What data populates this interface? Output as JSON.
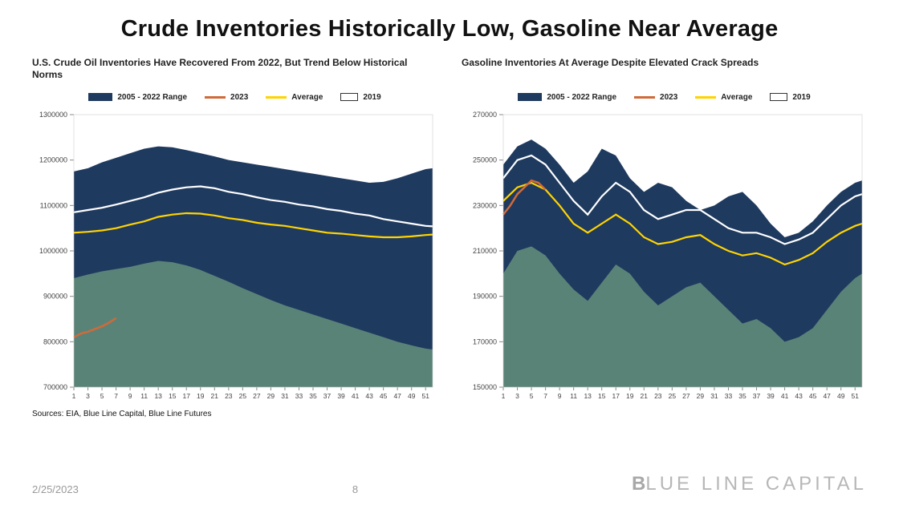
{
  "title": "Crude Inventories Historically Low, Gasoline Near Average",
  "source_note": "Sources: EIA, Blue Line Capital, Blue Line Futures",
  "footer": {
    "date": "2/25/2023",
    "page": "8"
  },
  "logo": {
    "text_pre": "B",
    "text_rest": "LUE LINE CAPITAL"
  },
  "colors": {
    "range_fill": "#1f3a5f",
    "range_min_fill": "#5a8378",
    "avg_line": "#ffd400",
    "line_2019": "#ffffff",
    "line_2023": "#d06a3a",
    "axis": "#777777",
    "text": "#222222",
    "plot_border": "#cfcfcf"
  },
  "legend": {
    "items": [
      {
        "label": "2005 - 2022 Range",
        "type": "rect",
        "color_key": "range_fill"
      },
      {
        "label": "2023",
        "type": "line",
        "color_key": "line_2023"
      },
      {
        "label": "Average",
        "type": "line",
        "color_key": "avg_line"
      },
      {
        "label": "2019",
        "type": "outline",
        "color_key": "line_2019"
      }
    ]
  },
  "charts": {
    "crude": {
      "subtitle": "U.S. Crude Oil Inventories Have Recovered From 2022, But Trend Below Historical Norms",
      "type": "area-range-with-lines",
      "xlim": [
        1,
        52
      ],
      "ylim": [
        700000,
        1300000
      ],
      "yticks": [
        700000,
        800000,
        900000,
        1000000,
        1100000,
        1200000,
        1300000
      ],
      "xticks": [
        1,
        3,
        5,
        7,
        9,
        11,
        13,
        15,
        17,
        19,
        21,
        23,
        25,
        27,
        29,
        31,
        33,
        35,
        37,
        39,
        41,
        43,
        45,
        47,
        49,
        51
      ],
      "line_width": 2.2,
      "data": {
        "x": [
          1,
          3,
          5,
          7,
          9,
          11,
          13,
          15,
          17,
          19,
          21,
          23,
          25,
          27,
          29,
          31,
          33,
          35,
          37,
          39,
          41,
          43,
          45,
          47,
          49,
          51,
          52
        ],
        "range_max": [
          1175000,
          1182000,
          1195000,
          1205000,
          1215000,
          1225000,
          1230000,
          1228000,
          1222000,
          1215000,
          1208000,
          1200000,
          1195000,
          1190000,
          1185000,
          1180000,
          1175000,
          1170000,
          1165000,
          1160000,
          1155000,
          1150000,
          1152000,
          1160000,
          1170000,
          1180000,
          1182000
        ],
        "range_min": [
          940000,
          948000,
          955000,
          960000,
          965000,
          972000,
          978000,
          975000,
          968000,
          958000,
          945000,
          932000,
          918000,
          905000,
          892000,
          880000,
          870000,
          860000,
          850000,
          840000,
          830000,
          820000,
          810000,
          800000,
          792000,
          785000,
          783000
        ],
        "avg": [
          1040000,
          1042000,
          1045000,
          1050000,
          1058000,
          1065000,
          1075000,
          1080000,
          1083000,
          1082000,
          1078000,
          1072000,
          1068000,
          1062000,
          1058000,
          1055000,
          1050000,
          1045000,
          1040000,
          1038000,
          1035000,
          1032000,
          1030000,
          1030000,
          1032000,
          1035000,
          1036000
        ],
        "line_2019": [
          1085000,
          1090000,
          1095000,
          1102000,
          1110000,
          1118000,
          1128000,
          1135000,
          1140000,
          1142000,
          1138000,
          1130000,
          1125000,
          1118000,
          1112000,
          1108000,
          1102000,
          1098000,
          1092000,
          1088000,
          1082000,
          1078000,
          1070000,
          1065000,
          1060000,
          1055000,
          1054000
        ],
        "line_2023_x": [
          1,
          2,
          3,
          4,
          5,
          6,
          7
        ],
        "line_2023": [
          810000,
          818000,
          822000,
          828000,
          834000,
          842000,
          852000
        ]
      }
    },
    "gasoline": {
      "subtitle": "Gasoline Inventories At Average Despite Elevated Crack Spreads",
      "type": "area-range-with-lines",
      "xlim": [
        1,
        52
      ],
      "ylim": [
        150000,
        270000
      ],
      "yticks": [
        150000,
        170000,
        190000,
        210000,
        230000,
        250000,
        270000
      ],
      "xticks": [
        1,
        3,
        5,
        7,
        9,
        11,
        13,
        15,
        17,
        19,
        21,
        23,
        25,
        27,
        29,
        31,
        33,
        35,
        37,
        39,
        41,
        43,
        45,
        47,
        49,
        51
      ],
      "line_width": 2.2,
      "data": {
        "x": [
          1,
          3,
          5,
          7,
          9,
          11,
          13,
          15,
          17,
          19,
          21,
          23,
          25,
          27,
          29,
          31,
          33,
          35,
          37,
          39,
          41,
          43,
          45,
          47,
          49,
          51,
          52
        ],
        "range_max": [
          248000,
          256000,
          259000,
          255000,
          248000,
          240000,
          245000,
          255000,
          252000,
          242000,
          236000,
          240000,
          238000,
          232000,
          228000,
          230000,
          234000,
          236000,
          230000,
          222000,
          216000,
          218000,
          223000,
          230000,
          236000,
          240000,
          241000
        ],
        "range_min": [
          200000,
          210000,
          212000,
          208000,
          200000,
          193000,
          188000,
          196000,
          204000,
          200000,
          192000,
          186000,
          190000,
          194000,
          196000,
          190000,
          184000,
          178000,
          180000,
          176000,
          170000,
          172000,
          176000,
          184000,
          192000,
          198000,
          200000
        ],
        "avg": [
          232000,
          238000,
          240000,
          237000,
          230000,
          222000,
          218000,
          222000,
          226000,
          222000,
          216000,
          213000,
          214000,
          216000,
          217000,
          213000,
          210000,
          208000,
          209000,
          207000,
          204000,
          206000,
          209000,
          214000,
          218000,
          221000,
          222000
        ],
        "line_2019": [
          242000,
          250000,
          252000,
          248000,
          240000,
          232000,
          226000,
          234000,
          240000,
          236000,
          228000,
          224000,
          226000,
          228000,
          228000,
          224000,
          220000,
          218000,
          218000,
          216000,
          213000,
          215000,
          218000,
          224000,
          230000,
          234000,
          235000
        ],
        "line_2023_x": [
          1,
          2,
          3,
          4,
          5,
          6,
          7
        ],
        "line_2023": [
          226000,
          230000,
          235000,
          238000,
          241000,
          240000,
          237000
        ]
      }
    }
  }
}
